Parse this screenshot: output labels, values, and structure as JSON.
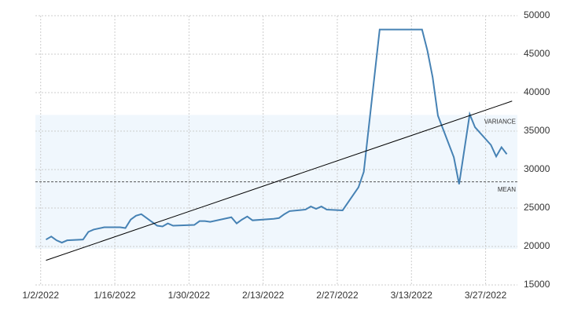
{
  "chart_data": {
    "type": "line",
    "x": [
      "1/3/2022",
      "1/4/2022",
      "1/5/2022",
      "1/6/2022",
      "1/7/2022",
      "1/10/2022",
      "1/11/2022",
      "1/12/2022",
      "1/14/2022",
      "1/17/2022",
      "1/18/2022",
      "1/19/2022",
      "1/20/2022",
      "1/21/2022",
      "1/24/2022",
      "1/25/2022",
      "1/26/2022",
      "1/27/2022",
      "1/31/2022",
      "2/1/2022",
      "2/2/2022",
      "2/3/2022",
      "2/7/2022",
      "2/8/2022",
      "2/9/2022",
      "2/10/2022",
      "2/11/2022",
      "2/15/2022",
      "2/16/2022",
      "2/17/2022",
      "2/18/2022",
      "2/21/2022",
      "2/22/2022",
      "2/23/2022",
      "2/24/2022",
      "2/25/2022",
      "2/28/2022",
      "3/3/2022",
      "3/4/2022",
      "3/7/2022",
      "3/9/2022",
      "3/11/2022",
      "3/15/2022",
      "3/16/2022",
      "3/17/2022",
      "3/18/2022",
      "3/21/2022",
      "3/22/2022",
      "3/24/2022",
      "3/25/2022",
      "3/28/2022",
      "3/29/2022",
      "3/30/2022",
      "3/31/2022"
    ],
    "series": [
      {
        "color": "#4682b4",
        "values": [
          20900,
          21300,
          20800,
          20500,
          20800,
          20900,
          21900,
          22200,
          22500,
          22500,
          22400,
          23500,
          24000,
          24200,
          22700,
          22600,
          23000,
          22700,
          22800,
          23300,
          23300,
          23200,
          23800,
          23000,
          23500,
          23900,
          23400,
          23600,
          23700,
          24200,
          24600,
          24800,
          25200,
          24900,
          25200,
          24800,
          24700,
          27700,
          29700,
          48200,
          48200,
          48200,
          48200,
          45500,
          42000,
          37000,
          31600,
          28100,
          37200,
          35500,
          33200,
          31700,
          32900,
          32000
        ]
      }
    ],
    "xlim": [
      "1/1/2022",
      "4/2/2022"
    ],
    "xticks": [
      "1/2/2022",
      "1/16/2022",
      "1/30/2022",
      "2/13/2022",
      "2/27/2022",
      "3/13/2022",
      "3/27/2022"
    ],
    "ylim": [
      15000,
      50000
    ],
    "yticks": [
      15000,
      20000,
      25000,
      30000,
      35000,
      40000,
      45000,
      50000
    ],
    "grid": true,
    "trend": {
      "x": [
        "1/3/2022",
        "4/1/2022"
      ],
      "values": [
        18200,
        38900
      ]
    },
    "mean": {
      "label": "MEAN",
      "value": 28400
    },
    "variance": {
      "label": "VARIANCE",
      "values": [
        19700,
        37100
      ]
    }
  }
}
